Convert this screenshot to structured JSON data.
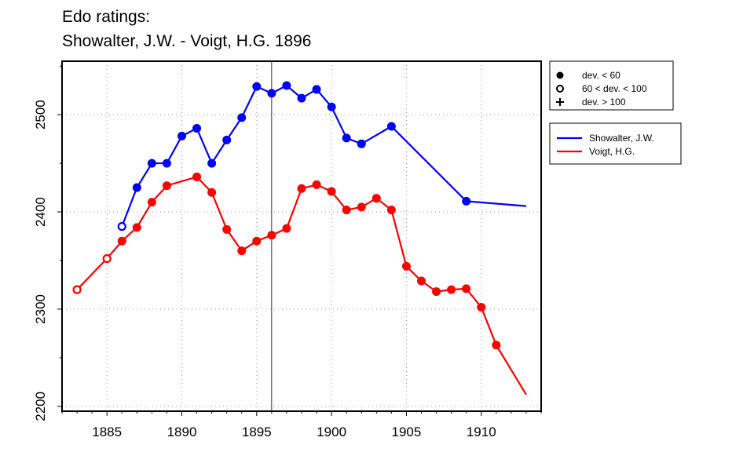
{
  "chart_data": {
    "type": "line",
    "title_line1": "Edo ratings:",
    "title_line2": "Showalter, J.W. - Voigt, H.G. 1896",
    "xlabel": "",
    "ylabel": "",
    "xlim": [
      1882,
      1914
    ],
    "ylim": [
      2195,
      2555
    ],
    "x_ticks": [
      1885,
      1890,
      1895,
      1900,
      1905,
      1910
    ],
    "y_ticks": [
      2200,
      2300,
      2400,
      2500
    ],
    "grid": true,
    "reference_x": 1896,
    "legend_markers": {
      "position": "top-right-outside",
      "entries": [
        {
          "label": "dev. < 60",
          "marker": "filled"
        },
        {
          "label": "60 < dev. < 100",
          "marker": "open"
        },
        {
          "label": "dev. > 100",
          "marker": "plus"
        }
      ]
    },
    "legend_series": {
      "position": "right-outside",
      "entries": [
        {
          "label": "Showalter, J.W.",
          "color": "#0000ff"
        },
        {
          "label": "Voigt, H.G.",
          "color": "#ff0000"
        }
      ]
    },
    "series": [
      {
        "name": "Showalter, J.W.",
        "color": "#0000ff",
        "points": [
          {
            "x": 1886,
            "y": 2385,
            "marker": "open"
          },
          {
            "x": 1887,
            "y": 2425,
            "marker": "filled"
          },
          {
            "x": 1888,
            "y": 2450,
            "marker": "filled"
          },
          {
            "x": 1889,
            "y": 2450,
            "marker": "filled"
          },
          {
            "x": 1890,
            "y": 2478,
            "marker": "filled"
          },
          {
            "x": 1891,
            "y": 2486,
            "marker": "filled"
          },
          {
            "x": 1892,
            "y": 2450,
            "marker": "filled"
          },
          {
            "x": 1893,
            "y": 2474,
            "marker": "filled"
          },
          {
            "x": 1894,
            "y": 2497,
            "marker": "filled"
          },
          {
            "x": 1895,
            "y": 2529,
            "marker": "filled"
          },
          {
            "x": 1896,
            "y": 2522,
            "marker": "filled"
          },
          {
            "x": 1897,
            "y": 2530,
            "marker": "filled"
          },
          {
            "x": 1898,
            "y": 2517,
            "marker": "filled"
          },
          {
            "x": 1899,
            "y": 2526,
            "marker": "filled"
          },
          {
            "x": 1900,
            "y": 2508,
            "marker": "filled"
          },
          {
            "x": 1901,
            "y": 2476,
            "marker": "filled"
          },
          {
            "x": 1902,
            "y": 2470,
            "marker": "filled"
          },
          {
            "x": 1904,
            "y": 2488,
            "marker": "filled"
          },
          {
            "x": 1909,
            "y": 2411,
            "marker": "filled"
          },
          {
            "x": 1913,
            "y": 2406,
            "marker": "none"
          }
        ]
      },
      {
        "name": "Voigt, H.G.",
        "color": "#ff0000",
        "points": [
          {
            "x": 1883,
            "y": 2320,
            "marker": "open"
          },
          {
            "x": 1885,
            "y": 2352,
            "marker": "open"
          },
          {
            "x": 1886,
            "y": 2370,
            "marker": "filled"
          },
          {
            "x": 1887,
            "y": 2384,
            "marker": "filled"
          },
          {
            "x": 1888,
            "y": 2410,
            "marker": "filled"
          },
          {
            "x": 1889,
            "y": 2427,
            "marker": "filled"
          },
          {
            "x": 1891,
            "y": 2436,
            "marker": "filled"
          },
          {
            "x": 1892,
            "y": 2420,
            "marker": "filled"
          },
          {
            "x": 1893,
            "y": 2382,
            "marker": "filled"
          },
          {
            "x": 1894,
            "y": 2360,
            "marker": "filled"
          },
          {
            "x": 1895,
            "y": 2370,
            "marker": "filled"
          },
          {
            "x": 1896,
            "y": 2376,
            "marker": "filled"
          },
          {
            "x": 1897,
            "y": 2383,
            "marker": "filled"
          },
          {
            "x": 1898,
            "y": 2424,
            "marker": "filled"
          },
          {
            "x": 1899,
            "y": 2428,
            "marker": "filled"
          },
          {
            "x": 1900,
            "y": 2421,
            "marker": "filled"
          },
          {
            "x": 1901,
            "y": 2402,
            "marker": "filled"
          },
          {
            "x": 1902,
            "y": 2405,
            "marker": "filled"
          },
          {
            "x": 1903,
            "y": 2414,
            "marker": "filled"
          },
          {
            "x": 1904,
            "y": 2402,
            "marker": "filled"
          },
          {
            "x": 1905,
            "y": 2344,
            "marker": "filled"
          },
          {
            "x": 1906,
            "y": 2329,
            "marker": "filled"
          },
          {
            "x": 1907,
            "y": 2318,
            "marker": "filled"
          },
          {
            "x": 1908,
            "y": 2320,
            "marker": "filled"
          },
          {
            "x": 1909,
            "y": 2321,
            "marker": "filled"
          },
          {
            "x": 1910,
            "y": 2302,
            "marker": "filled"
          },
          {
            "x": 1911,
            "y": 2263,
            "marker": "filled"
          },
          {
            "x": 1913,
            "y": 2212,
            "marker": "none"
          }
        ]
      }
    ]
  }
}
